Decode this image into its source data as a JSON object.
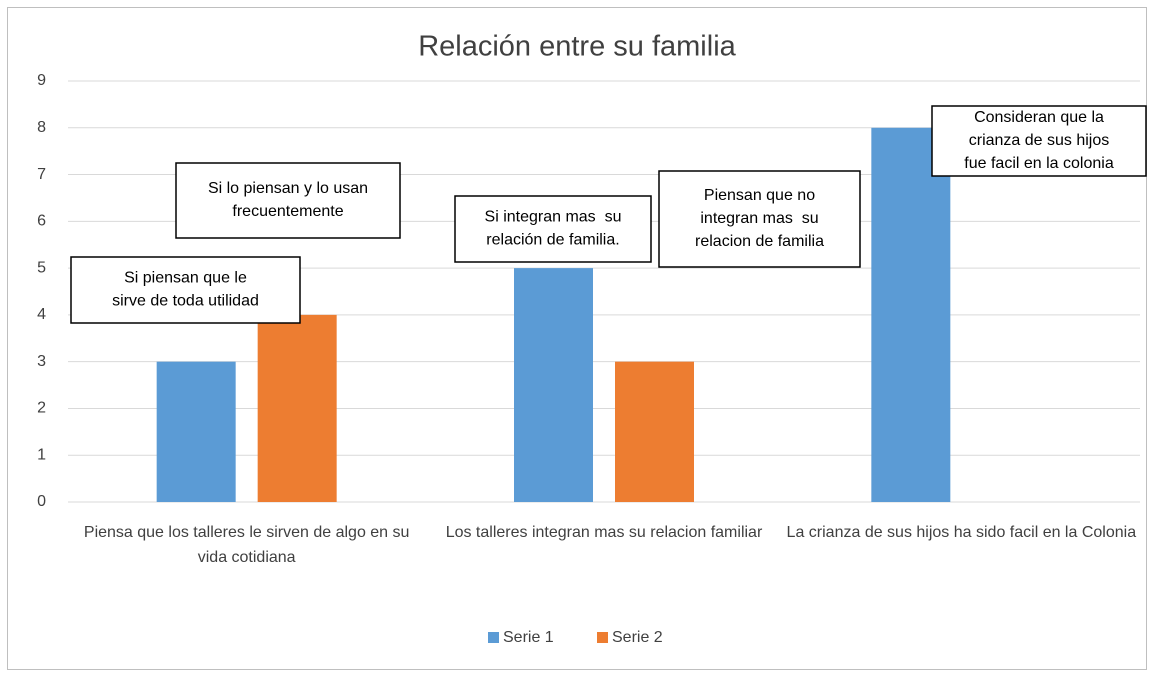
{
  "chart_data": {
    "type": "bar",
    "title": "Relación entre su familia",
    "categories": [
      "Piensa que los talleres le sirven de algo en su vida cotidiana",
      "Los talleres integran mas su relacion familiar",
      "La crianza de sus hijos ha sido facil en la Colonia"
    ],
    "series": [
      {
        "name": "Serie 1",
        "color": "#5b9bd5",
        "values": [
          3,
          5,
          8
        ]
      },
      {
        "name": "Serie 2",
        "color": "#ed7d31",
        "values": [
          4,
          3,
          null
        ]
      }
    ],
    "ylim": [
      0,
      9
    ],
    "yticks": [
      0,
      1,
      2,
      3,
      4,
      5,
      6,
      7,
      8,
      9
    ],
    "grid": true,
    "legend": "bottom",
    "annotations": [
      [
        "Si piensan que le",
        "sirve de toda utilidad"
      ],
      [
        "Si lo piensan y lo usan",
        "frecuentemente"
      ],
      [
        "Si integran mas  su",
        "relación de familia."
      ],
      [
        "Piensan que no",
        "integran mas  su",
        "relacion de familia"
      ],
      [
        "Consideran que la",
        "crianza de sus hijos",
        "fue facil en la colonia"
      ]
    ]
  }
}
